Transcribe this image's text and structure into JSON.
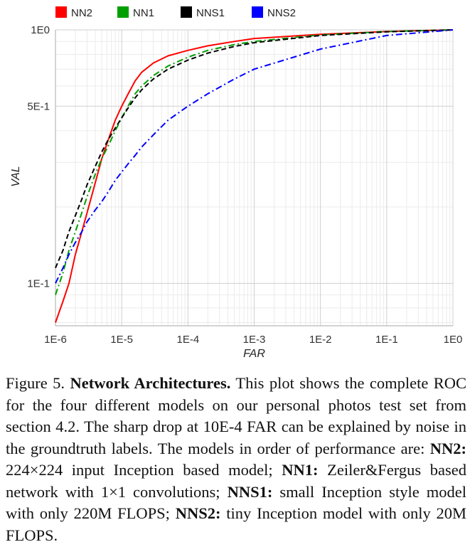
{
  "chart_data": {
    "type": "line",
    "xlabel": "FAR",
    "ylabel": "VAL",
    "x_scale": "log",
    "y_scale": "log",
    "xlim": [
      1e-06,
      1
    ],
    "ylim": [
      0.068,
      1
    ],
    "x_ticks": [
      {
        "value": 1e-06,
        "label": "1E-6"
      },
      {
        "value": 1e-05,
        "label": "1E-5"
      },
      {
        "value": 0.0001,
        "label": "1E-4"
      },
      {
        "value": 0.001,
        "label": "1E-3"
      },
      {
        "value": 0.01,
        "label": "1E-2"
      },
      {
        "value": 0.1,
        "label": "1E-1"
      },
      {
        "value": 1,
        "label": "1E0"
      }
    ],
    "y_ticks": [
      {
        "value": 0.1,
        "label": "1E-1"
      },
      {
        "value": 0.5,
        "label": "5E-1"
      },
      {
        "value": 1,
        "label": "1E0"
      }
    ],
    "grid": true,
    "legend_position": "top",
    "series": [
      {
        "name": "NN2",
        "color": "#ff0000",
        "dash": "solid",
        "x": [
          1e-06,
          1.3e-06,
          1.6e-06,
          2e-06,
          2.5e-06,
          3e-06,
          4e-06,
          5e-06,
          6.3e-06,
          8e-06,
          1e-05,
          1.3e-05,
          1.6e-05,
          2e-05,
          3e-05,
          5e-05,
          0.0001,
          0.0002,
          0.0005,
          0.001,
          0.01,
          0.1,
          1
        ],
        "y": [
          0.07,
          0.085,
          0.1,
          0.13,
          0.16,
          0.19,
          0.25,
          0.31,
          0.37,
          0.44,
          0.5,
          0.57,
          0.63,
          0.68,
          0.74,
          0.79,
          0.83,
          0.865,
          0.9,
          0.925,
          0.96,
          0.985,
          1.0
        ]
      },
      {
        "name": "NN1",
        "color": "#00a000",
        "dash": "dashdot",
        "x": [
          1e-06,
          1.3e-06,
          1.6e-06,
          2e-06,
          2.5e-06,
          3e-06,
          4e-06,
          5e-06,
          6.3e-06,
          8e-06,
          1e-05,
          1.3e-05,
          1.6e-05,
          2e-05,
          3e-05,
          5e-05,
          0.0001,
          0.0002,
          0.0005,
          0.001,
          0.01,
          0.1,
          1
        ],
        "y": [
          0.09,
          0.11,
          0.135,
          0.16,
          0.19,
          0.22,
          0.27,
          0.31,
          0.35,
          0.4,
          0.45,
          0.51,
          0.56,
          0.6,
          0.66,
          0.72,
          0.78,
          0.83,
          0.875,
          0.9,
          0.955,
          0.985,
          1.0
        ]
      },
      {
        "name": "NNS1",
        "color": "#000000",
        "dash": "dashed",
        "x": [
          1e-06,
          1.3e-06,
          1.6e-06,
          2e-06,
          2.5e-06,
          3e-06,
          4e-06,
          5e-06,
          6.3e-06,
          8e-06,
          1e-05,
          1.3e-05,
          1.6e-05,
          2e-05,
          3e-05,
          5e-05,
          0.0001,
          0.0002,
          0.0005,
          0.001,
          0.01,
          0.1,
          1
        ],
        "y": [
          0.115,
          0.135,
          0.16,
          0.185,
          0.215,
          0.245,
          0.29,
          0.33,
          0.37,
          0.41,
          0.45,
          0.5,
          0.54,
          0.58,
          0.64,
          0.7,
          0.76,
          0.81,
          0.86,
          0.89,
          0.95,
          0.983,
          1.0
        ]
      },
      {
        "name": "NNS2",
        "color": "#0000ff",
        "dash": "dashdot",
        "x": [
          1e-06,
          1.3e-06,
          1.6e-06,
          2e-06,
          2.5e-06,
          3e-06,
          4e-06,
          5e-06,
          6.3e-06,
          8e-06,
          1e-05,
          1.3e-05,
          1.6e-05,
          2e-05,
          3e-05,
          5e-05,
          0.0001,
          0.0002,
          0.0005,
          0.001,
          0.01,
          0.1,
          1
        ],
        "y": [
          0.1,
          0.115,
          0.13,
          0.145,
          0.16,
          0.175,
          0.195,
          0.21,
          0.23,
          0.255,
          0.275,
          0.3,
          0.32,
          0.345,
          0.385,
          0.44,
          0.5,
          0.56,
          0.64,
          0.7,
          0.84,
          0.95,
          1.0
        ]
      }
    ]
  },
  "caption": {
    "figure_label": "Figure 5.",
    "bold_title": "Network Architectures.",
    "text1": "This plot shows the complete ROC for the four different models on our personal photos test set from section 4.2. The sharp drop at 10E-4 FAR can be explained by noise in the groundtruth labels. The models in order of performance are:",
    "nn2_label": "NN2:",
    "nn2_text": "224×224 input Inception based model;",
    "nn1_label": "NN1:",
    "nn1_text": "Zeiler&Fergus based network with 1×1 convolutions;",
    "nns1_label": "NNS1:",
    "nns1_text": "small Inception style model with only 220M FLOPS;",
    "nns2_label": "NNS2:",
    "nns2_text": "tiny Inception model with only 20M FLOPS."
  }
}
